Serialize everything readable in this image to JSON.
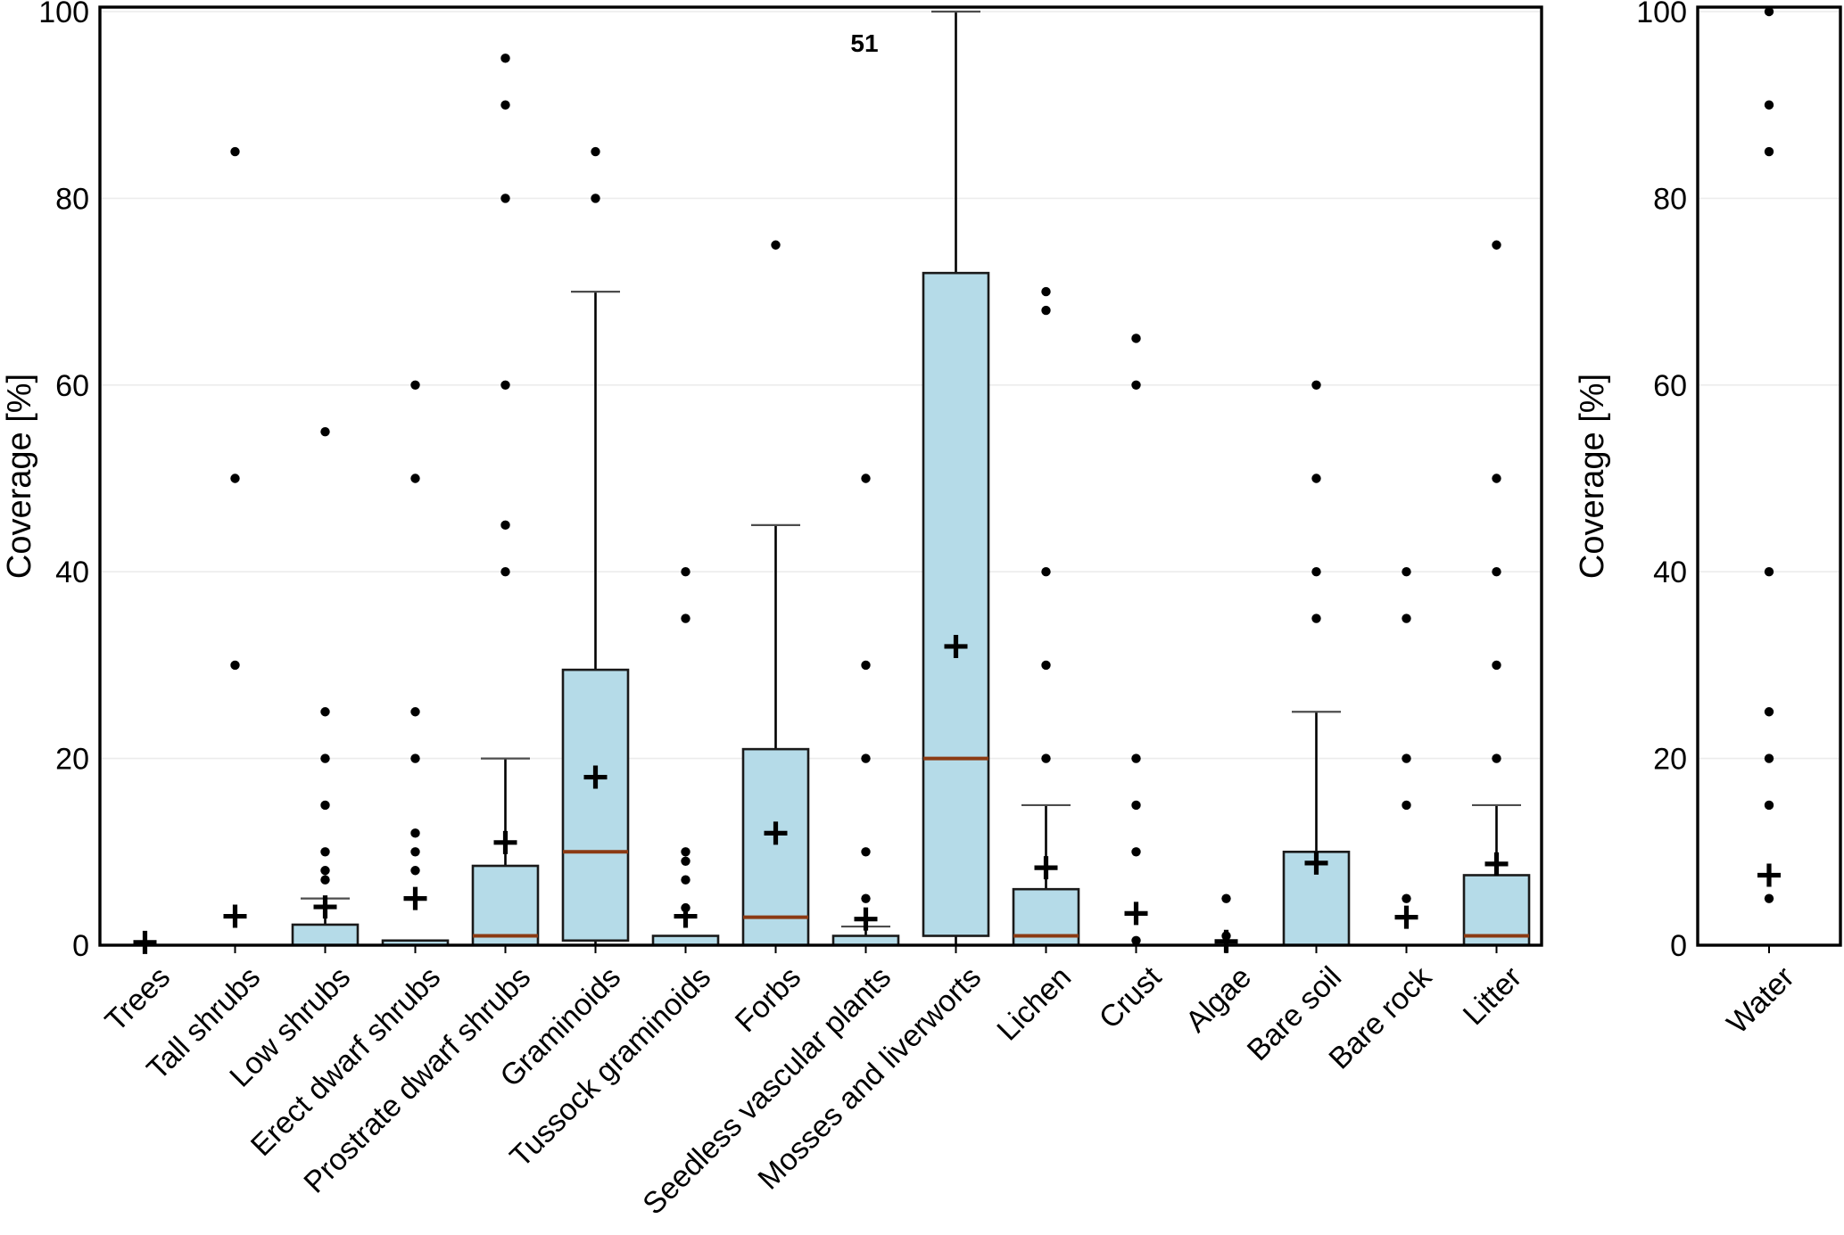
{
  "colors": {
    "box_fill": "#b5dbe8",
    "box_stroke": "#1a1a1a",
    "median": "#8b3a13",
    "whisker": "#000000",
    "cap": "#4d4d4d",
    "outlier": "#000000",
    "mean": "#000000",
    "grid": "#ececec",
    "frame": "#000000"
  },
  "chart_data": [
    {
      "type": "box",
      "ylabel": "Coverage [%]",
      "ylim": [
        0,
        100
      ],
      "yticks": [
        0,
        20,
        40,
        60,
        80,
        100
      ],
      "grid": true,
      "legend": "none",
      "annotation": {
        "text": "51",
        "category": "Mosses and liverworts",
        "value": 97
      },
      "categories": [
        {
          "label": "Trees",
          "q1": 0,
          "median": 0,
          "q3": 0,
          "whisker_low": 0,
          "whisker_high": 0,
          "mean": 0.3,
          "outliers": []
        },
        {
          "label": "Tall shrubs",
          "q1": 0,
          "median": 0,
          "q3": 0,
          "whisker_low": 0,
          "whisker_high": 0,
          "mean": 3.1,
          "outliers": [
            30,
            50,
            85
          ]
        },
        {
          "label": "Low shrubs",
          "q1": 0,
          "median": 0,
          "q3": 2.2,
          "whisker_low": 0,
          "whisker_high": 5,
          "mean": 4.1,
          "outliers": [
            7,
            8,
            10,
            15,
            20,
            25,
            55
          ]
        },
        {
          "label": "Erect dwarf shrubs",
          "q1": 0,
          "median": 0,
          "q3": 0.5,
          "whisker_low": 0,
          "whisker_high": 0.5,
          "mean": 5,
          "outliers": [
            8,
            10,
            12,
            20,
            25,
            50,
            60
          ]
        },
        {
          "label": "Prostrate dwarf shrubs",
          "q1": 0,
          "median": 1,
          "q3": 8.5,
          "whisker_low": 0,
          "whisker_high": 20,
          "mean": 11,
          "outliers": [
            40,
            45,
            60,
            80,
            90,
            95
          ]
        },
        {
          "label": "Graminoids",
          "q1": 0.5,
          "median": 10,
          "q3": 29.5,
          "whisker_low": 0,
          "whisker_high": 70,
          "mean": 18,
          "outliers": [
            80,
            85
          ]
        },
        {
          "label": "Tussock graminoids",
          "q1": 0,
          "median": 0,
          "q3": 1,
          "whisker_low": 0,
          "whisker_high": 1,
          "mean": 3.1,
          "outliers": [
            4,
            7,
            9,
            10,
            35,
            40
          ]
        },
        {
          "label": "Forbs",
          "q1": 0,
          "median": 3,
          "q3": 21,
          "whisker_low": 0,
          "whisker_high": 45,
          "mean": 12,
          "outliers": [
            75
          ]
        },
        {
          "label": "Seedless vascular plants",
          "q1": 0,
          "median": 0,
          "q3": 1,
          "whisker_low": 0,
          "whisker_high": 2,
          "mean": 2.8,
          "outliers": [
            5,
            10,
            20,
            30,
            50
          ]
        },
        {
          "label": "Mosses and liverworts",
          "q1": 1,
          "median": 20,
          "q3": 72,
          "whisker_low": 0,
          "whisker_high": 100,
          "mean": 32,
          "outliers": []
        },
        {
          "label": "Lichen",
          "q1": 0,
          "median": 1,
          "q3": 6,
          "whisker_low": 0,
          "whisker_high": 15,
          "mean": 8.3,
          "outliers": [
            20,
            30,
            40,
            68,
            70
          ]
        },
        {
          "label": "Crust",
          "q1": 0,
          "median": 0,
          "q3": 0,
          "whisker_low": 0,
          "whisker_high": 0,
          "mean": 3.4,
          "outliers": [
            0.5,
            10,
            15,
            20,
            60,
            65
          ]
        },
        {
          "label": "Algae",
          "q1": 0,
          "median": 0,
          "q3": 0,
          "whisker_low": 0,
          "whisker_high": 0,
          "mean": 0.4,
          "outliers": [
            1,
            5
          ]
        },
        {
          "label": "Bare soil",
          "q1": 0,
          "median": 0,
          "q3": 10,
          "whisker_low": 0,
          "whisker_high": 25,
          "mean": 8.8,
          "outliers": [
            35,
            40,
            50,
            60
          ]
        },
        {
          "label": "Bare rock",
          "q1": 0,
          "median": 0,
          "q3": 0,
          "whisker_low": 0,
          "whisker_high": 0,
          "mean": 3,
          "outliers": [
            5,
            15,
            20,
            35,
            40
          ]
        },
        {
          "label": "Litter",
          "q1": 0,
          "median": 1,
          "q3": 7.5,
          "whisker_low": 0,
          "whisker_high": 15,
          "mean": 8.7,
          "outliers": [
            20,
            30,
            40,
            50,
            75
          ]
        }
      ]
    },
    {
      "type": "box",
      "ylabel": "Coverage [%]",
      "ylim": [
        0,
        100
      ],
      "yticks": [
        0,
        20,
        40,
        60,
        80,
        100
      ],
      "grid": true,
      "legend": "none",
      "categories": [
        {
          "label": "Water",
          "q1": 0,
          "median": 0,
          "q3": 0,
          "whisker_low": 0,
          "whisker_high": 0,
          "mean": 7.5,
          "outliers": [
            5,
            15,
            20,
            25,
            40,
            85,
            90,
            100
          ]
        }
      ]
    }
  ]
}
